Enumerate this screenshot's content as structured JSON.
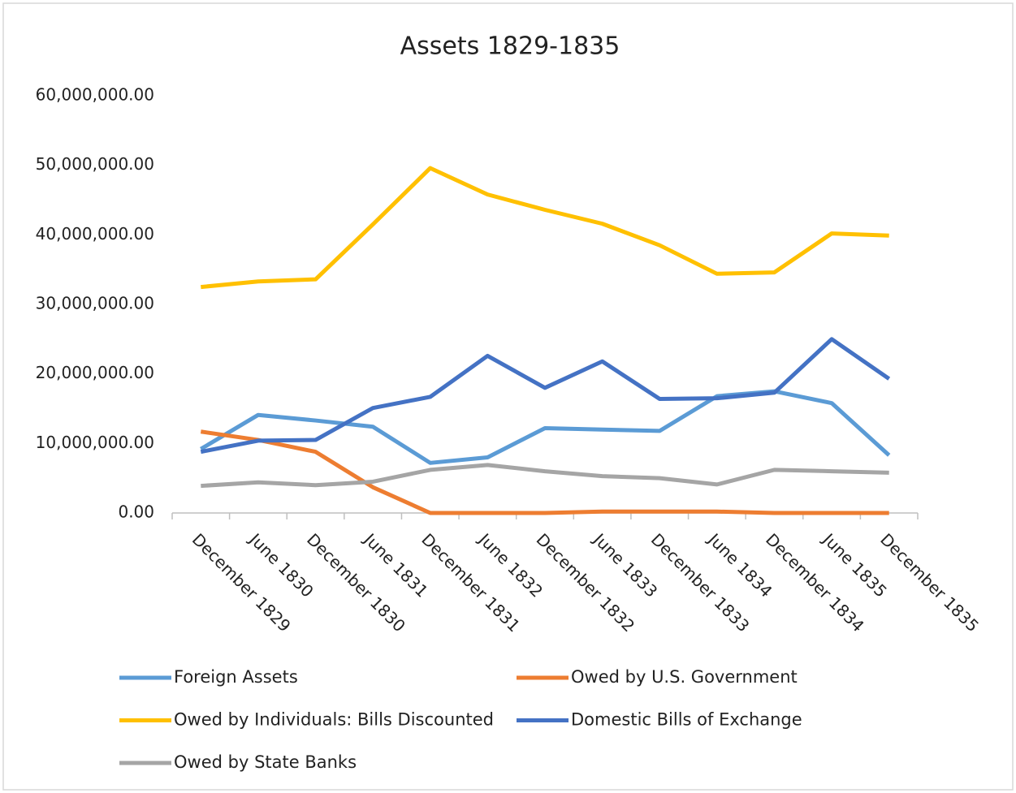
{
  "chart_data": {
    "type": "line",
    "title": "Assets 1829-1835",
    "categories": [
      "December 1829",
      "June 1830",
      "December 1830",
      "June 1831",
      "December 1831",
      "June 1832",
      "December 1832",
      "June 1833",
      "December 1833",
      "June 1834",
      "December 1834",
      "June 1835",
      "December 1835"
    ],
    "series": [
      {
        "name": "Foreign Assets",
        "color": "#5b9bd5",
        "values": [
          9200000,
          14100000,
          13300000,
          12400000,
          7200000,
          8000000,
          12200000,
          12000000,
          11800000,
          16800000,
          17500000,
          15800000,
          8300000
        ]
      },
      {
        "name": "Owed by U.S. Government",
        "color": "#ed7d31",
        "values": [
          11700000,
          10500000,
          8800000,
          3700000,
          0,
          0,
          0,
          200000,
          200000,
          200000,
          0,
          0,
          0
        ]
      },
      {
        "name": "Owed by Individuals: Bills Discounted",
        "color": "#ffc000",
        "values": [
          32500000,
          33300000,
          33600000,
          41500000,
          49600000,
          45800000,
          43600000,
          41600000,
          38500000,
          34400000,
          34600000,
          40200000,
          39900000
        ]
      },
      {
        "name": "Domestic Bills of Exchange",
        "color": "#4472c4",
        "values": [
          8800000,
          10400000,
          10500000,
          15100000,
          16700000,
          22600000,
          18000000,
          21800000,
          16400000,
          16500000,
          17300000,
          25000000,
          19300000
        ]
      },
      {
        "name": "Owed by State Banks",
        "color": "#a5a5a5",
        "values": [
          3900000,
          4400000,
          4000000,
          4500000,
          6200000,
          6900000,
          6000000,
          5300000,
          5000000,
          4100000,
          6200000,
          6000000,
          5800000
        ]
      }
    ],
    "ylim": [
      0,
      60000000
    ],
    "yticks": [
      {
        "value": 0,
        "label": "0.00"
      },
      {
        "value": 10000000,
        "label": "10,000,000.00"
      },
      {
        "value": 20000000,
        "label": "20,000,000.00"
      },
      {
        "value": 30000000,
        "label": "30,000,000.00"
      },
      {
        "value": 40000000,
        "label": "40,000,000.00"
      },
      {
        "value": 50000000,
        "label": "50,000,000.00"
      },
      {
        "value": 60000000,
        "label": "60,000,000.00"
      }
    ],
    "grid": false,
    "legend": "bottom"
  }
}
